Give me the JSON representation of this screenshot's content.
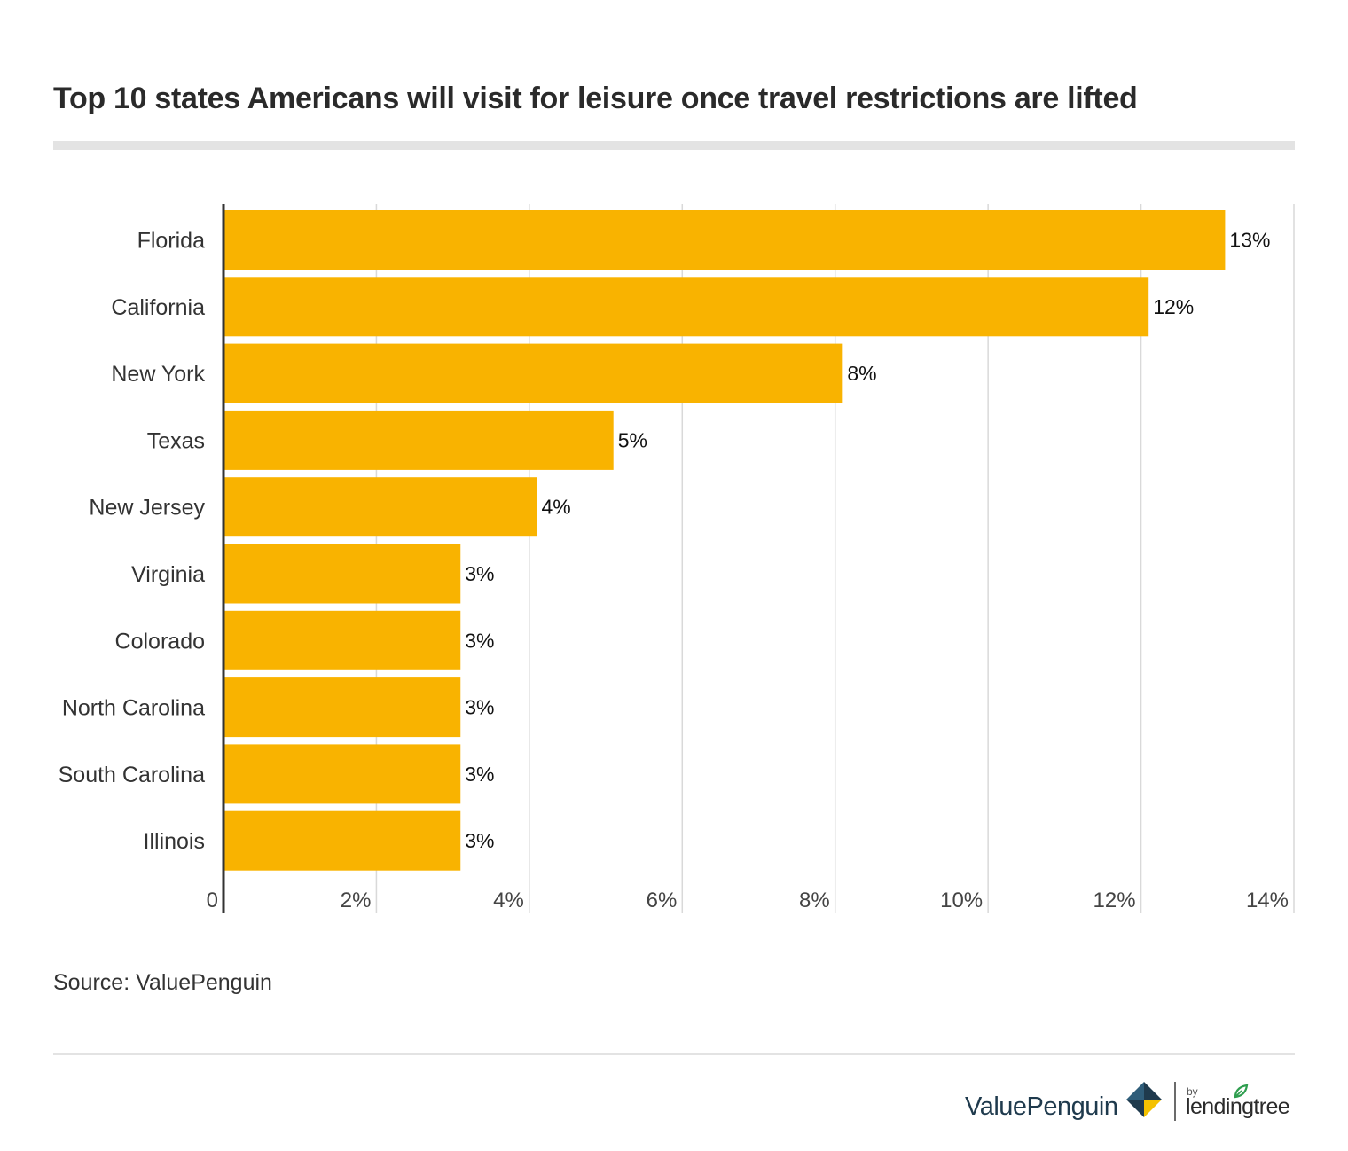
{
  "title": "Top 10 states Americans will visit for leisure once travel restrictions are lifted",
  "source": "Source: ValuePenguin",
  "brand": {
    "valuepenguin": "ValuePenguin",
    "by": "by",
    "lendingtree": "lendingtree"
  },
  "colors": {
    "bar": "#F9B300",
    "gridline": "#d9d9d9",
    "axis": "#333333",
    "brand_navy": "#1f3a4d",
    "brand_gold": "#f4c100",
    "brand_green": "#2f9e4f"
  },
  "chart_data": {
    "type": "bar",
    "orientation": "horizontal",
    "title": "Top 10 states Americans will visit for leisure once travel restrictions are lifted",
    "categories": [
      "Florida",
      "California",
      "New York",
      "Texas",
      "New Jersey",
      "Virginia",
      "Colorado",
      "North Carolina",
      "South Carolina",
      "Illinois"
    ],
    "values": [
      13.1,
      12.1,
      8.1,
      5.1,
      4.1,
      3.1,
      3.1,
      3.1,
      3.1,
      3.1
    ],
    "data_labels": [
      "13%",
      "12%",
      "8%",
      "5%",
      "4%",
      "3%",
      "3%",
      "3%",
      "3%",
      "3%"
    ],
    "xlim": [
      0,
      14
    ],
    "x_ticks": [
      0,
      2,
      4,
      6,
      8,
      10,
      12,
      14
    ],
    "x_tick_labels": [
      "0",
      "2%",
      "4%",
      "6%",
      "8%",
      "10%",
      "12%",
      "14%"
    ],
    "xlabel": "",
    "ylabel": "",
    "grid": true,
    "legend": false
  }
}
